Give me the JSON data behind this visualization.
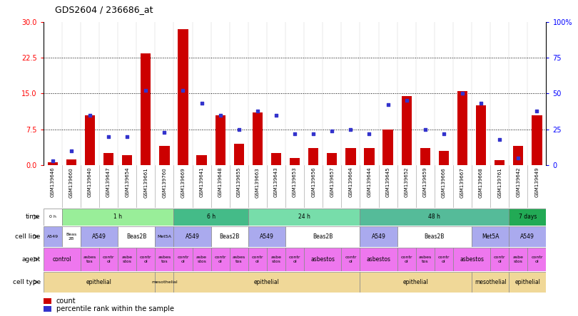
{
  "title": "GDS2604 / 236686_at",
  "samples": [
    "GSM139646",
    "GSM139660",
    "GSM139640",
    "GSM139647",
    "GSM139654",
    "GSM139661",
    "GSM139760",
    "GSM139669",
    "GSM139641",
    "GSM139648",
    "GSM139655",
    "GSM139663",
    "GSM139643",
    "GSM139653",
    "GSM139656",
    "GSM139657",
    "GSM139664",
    "GSM139644",
    "GSM139645",
    "GSM139652",
    "GSM139659",
    "GSM139666",
    "GSM139667",
    "GSM139668",
    "GSM139761",
    "GSM139642",
    "GSM139649"
  ],
  "counts": [
    0.5,
    1.2,
    10.5,
    2.5,
    2.0,
    23.5,
    4.0,
    28.5,
    2.0,
    10.5,
    4.5,
    11.0,
    2.5,
    1.5,
    3.5,
    2.5,
    3.5,
    3.5,
    7.5,
    14.5,
    3.5,
    3.0,
    15.5,
    12.5,
    1.0,
    4.0,
    10.5
  ],
  "percentiles": [
    3,
    10,
    35,
    20,
    20,
    52,
    23,
    52,
    43,
    35,
    25,
    38,
    35,
    22,
    22,
    24,
    25,
    22,
    42,
    45,
    25,
    22,
    50,
    43,
    18,
    5,
    38
  ],
  "ylim_left": [
    0,
    30
  ],
  "ylim_right": [
    0,
    100
  ],
  "yticks_left": [
    0,
    7.5,
    15,
    22.5,
    30
  ],
  "yticks_right": [
    0,
    25,
    50,
    75,
    100
  ],
  "ytick_labels_right": [
    "0",
    "25",
    "50",
    "75",
    "100%"
  ],
  "bar_color": "#cc0000",
  "dot_color": "#3333cc",
  "time_row": {
    "label": "time",
    "groups": [
      {
        "text": "0 h",
        "start": 0,
        "end": 1,
        "color": "#ffffff"
      },
      {
        "text": "1 h",
        "start": 1,
        "end": 7,
        "color": "#99ee99"
      },
      {
        "text": "6 h",
        "start": 7,
        "end": 11,
        "color": "#44bb88"
      },
      {
        "text": "24 h",
        "start": 11,
        "end": 17,
        "color": "#77ddaa"
      },
      {
        "text": "48 h",
        "start": 17,
        "end": 25,
        "color": "#55bb99"
      },
      {
        "text": "7 days",
        "start": 25,
        "end": 27,
        "color": "#22aa55"
      }
    ]
  },
  "cellline_row": {
    "label": "cell line",
    "groups": [
      {
        "text": "A549",
        "start": 0,
        "end": 1,
        "color": "#aaaaee"
      },
      {
        "text": "Beas\n2B",
        "start": 1,
        "end": 2,
        "color": "#ffffff"
      },
      {
        "text": "A549",
        "start": 2,
        "end": 4,
        "color": "#aaaaee"
      },
      {
        "text": "Beas2B",
        "start": 4,
        "end": 6,
        "color": "#ffffff"
      },
      {
        "text": "Met5A",
        "start": 6,
        "end": 7,
        "color": "#aaaaee"
      },
      {
        "text": "A549",
        "start": 7,
        "end": 9,
        "color": "#aaaaee"
      },
      {
        "text": "Beas2B",
        "start": 9,
        "end": 11,
        "color": "#ffffff"
      },
      {
        "text": "A549",
        "start": 11,
        "end": 13,
        "color": "#aaaaee"
      },
      {
        "text": "Beas2B",
        "start": 13,
        "end": 17,
        "color": "#ffffff"
      },
      {
        "text": "A549",
        "start": 17,
        "end": 19,
        "color": "#aaaaee"
      },
      {
        "text": "Beas2B",
        "start": 19,
        "end": 23,
        "color": "#ffffff"
      },
      {
        "text": "Met5A",
        "start": 23,
        "end": 25,
        "color": "#aaaaee"
      },
      {
        "text": "A549",
        "start": 25,
        "end": 27,
        "color": "#aaaaee"
      }
    ]
  },
  "agent_row": {
    "label": "agent",
    "groups": [
      {
        "text": "control",
        "start": 0,
        "end": 2,
        "color": "#ee77ee"
      },
      {
        "text": "asbes\ntos",
        "start": 2,
        "end": 3,
        "color": "#ee77ee"
      },
      {
        "text": "contr\nol",
        "start": 3,
        "end": 4,
        "color": "#ee77ee"
      },
      {
        "text": "asbe\nstos",
        "start": 4,
        "end": 5,
        "color": "#ee77ee"
      },
      {
        "text": "contr\nol",
        "start": 5,
        "end": 6,
        "color": "#ee77ee"
      },
      {
        "text": "asbes\ntos",
        "start": 6,
        "end": 7,
        "color": "#ee77ee"
      },
      {
        "text": "contr\nol",
        "start": 7,
        "end": 8,
        "color": "#ee77ee"
      },
      {
        "text": "asbe\nstos",
        "start": 8,
        "end": 9,
        "color": "#ee77ee"
      },
      {
        "text": "contr\nol",
        "start": 9,
        "end": 10,
        "color": "#ee77ee"
      },
      {
        "text": "asbes\ntos",
        "start": 10,
        "end": 11,
        "color": "#ee77ee"
      },
      {
        "text": "contr\nol",
        "start": 11,
        "end": 12,
        "color": "#ee77ee"
      },
      {
        "text": "asbe\nstos",
        "start": 12,
        "end": 13,
        "color": "#ee77ee"
      },
      {
        "text": "contr\nol",
        "start": 13,
        "end": 14,
        "color": "#ee77ee"
      },
      {
        "text": "asbestos",
        "start": 14,
        "end": 16,
        "color": "#ee77ee"
      },
      {
        "text": "contr\nol",
        "start": 16,
        "end": 17,
        "color": "#ee77ee"
      },
      {
        "text": "asbestos",
        "start": 17,
        "end": 19,
        "color": "#ee77ee"
      },
      {
        "text": "contr\nol",
        "start": 19,
        "end": 20,
        "color": "#ee77ee"
      },
      {
        "text": "asbes\ntos",
        "start": 20,
        "end": 21,
        "color": "#ee77ee"
      },
      {
        "text": "contr\nol",
        "start": 21,
        "end": 22,
        "color": "#ee77ee"
      },
      {
        "text": "asbestos",
        "start": 22,
        "end": 24,
        "color": "#ee77ee"
      },
      {
        "text": "contr\nol",
        "start": 24,
        "end": 25,
        "color": "#ee77ee"
      },
      {
        "text": "asbe\nstos",
        "start": 25,
        "end": 26,
        "color": "#ee77ee"
      },
      {
        "text": "contr\nol",
        "start": 26,
        "end": 27,
        "color": "#ee77ee"
      }
    ]
  },
  "celltype_row": {
    "label": "cell type",
    "groups": [
      {
        "text": "epithelial",
        "start": 0,
        "end": 6,
        "color": "#f0d898"
      },
      {
        "text": "mesothelial",
        "start": 6,
        "end": 7,
        "color": "#f0d898"
      },
      {
        "text": "epithelial",
        "start": 7,
        "end": 17,
        "color": "#f0d898"
      },
      {
        "text": "epithelial",
        "start": 17,
        "end": 23,
        "color": "#f0d898"
      },
      {
        "text": "mesothelial",
        "start": 23,
        "end": 25,
        "color": "#f0d898"
      },
      {
        "text": "epithelial",
        "start": 25,
        "end": 27,
        "color": "#f0d898"
      }
    ]
  }
}
